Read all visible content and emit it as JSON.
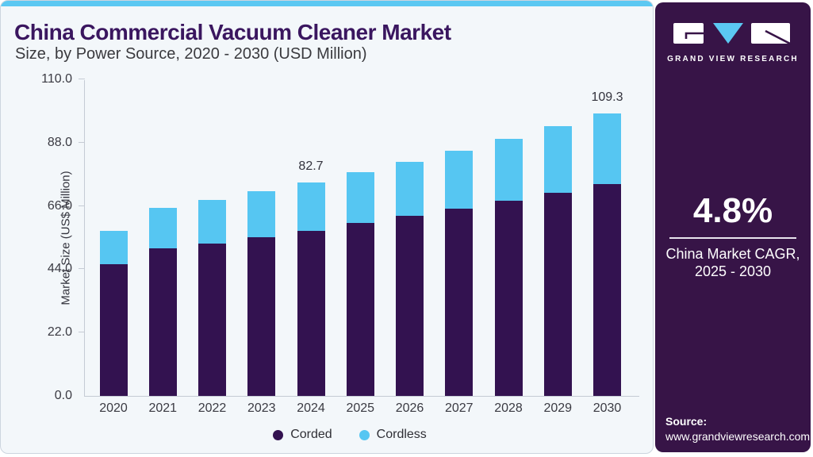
{
  "chart_data": {
    "type": "bar",
    "stacked": true,
    "title": "China Commercial Vacuum Cleaner Market",
    "subtitle": "Size, by Power Source, 2020 - 2030 (USD Million)",
    "ylabel": "Market Size (US$ Million)",
    "categories": [
      "2020",
      "2021",
      "2022",
      "2023",
      "2024",
      "2025",
      "2026",
      "2027",
      "2028",
      "2029",
      "2030"
    ],
    "series": [
      {
        "name": "Corded",
        "color": "#331250",
        "values": [
          50.9,
          57.0,
          58.9,
          61.5,
          63.8,
          66.9,
          69.6,
          72.4,
          75.5,
          78.6,
          81.9
        ]
      },
      {
        "name": "Cordless",
        "color": "#56c6f2",
        "values": [
          13.1,
          15.8,
          17.0,
          17.8,
          18.9,
          19.6,
          21.1,
          22.6,
          24.1,
          25.7,
          27.4
        ]
      }
    ],
    "totals": [
      64.0,
      72.8,
      75.9,
      79.3,
      82.7,
      86.5,
      90.7,
      95.0,
      99.6,
      104.3,
      109.3
    ],
    "annotations": [
      {
        "category": "2024",
        "text": "82.7"
      },
      {
        "category": "2030",
        "text": "109.3"
      }
    ],
    "yticks": [
      "0.0",
      "22.0",
      "44.0",
      "66.0",
      "88.0",
      "110.0"
    ],
    "ylim": [
      0,
      110
    ],
    "grid": false,
    "legend_position": "bottom"
  },
  "sidebar": {
    "brand": "GRAND VIEW RESEARCH",
    "cagr_value": "4.8%",
    "cagr_caption_line1": "China Market CAGR,",
    "cagr_caption_line2": "2025 - 2030",
    "source_label": "Source:",
    "source_url": "www.grandviewresearch.com"
  },
  "colors": {
    "corded": "#331250",
    "cordless": "#56c6f2",
    "panel_purple": "#371447",
    "accent_strip_blue": "#5bc8f2",
    "title_purple": "#3a165f",
    "card_background": "#f3f7fa"
  }
}
